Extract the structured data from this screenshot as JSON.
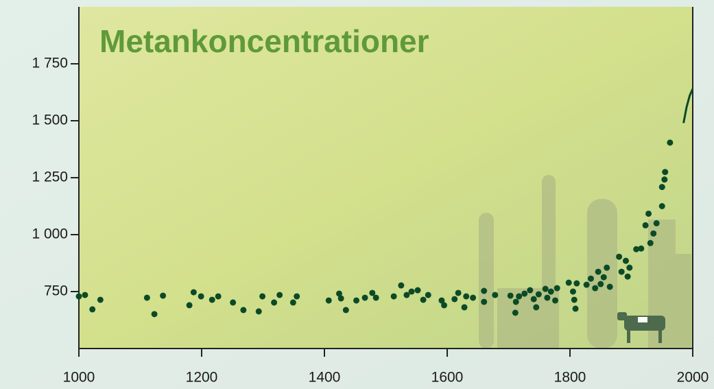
{
  "chart_data": {
    "type": "scatter",
    "title": "Metankoncentrationer",
    "color": "#0b4a26",
    "x": [
      1000,
      1010,
      1022,
      1035,
      1111,
      1123,
      1137,
      1180,
      1187,
      1199,
      1217,
      1227,
      1251,
      1268,
      1293,
      1299,
      1318,
      1327,
      1349,
      1355,
      1407,
      1424,
      1427,
      1435,
      1452,
      1466,
      1478,
      1484,
      1513,
      1525,
      1534,
      1542,
      1552,
      1561,
      1569,
      1591,
      1595,
      1612,
      1618,
      1628,
      1631,
      1642,
      1660,
      1660,
      1678,
      1703,
      1711,
      1712,
      1717,
      1726,
      1735,
      1741,
      1745,
      1749,
      1760,
      1763,
      1769,
      1776,
      1779,
      1798,
      1805,
      1807,
      1809,
      1811,
      1827,
      1834,
      1841,
      1846,
      1850,
      1855,
      1860,
      1865,
      1880,
      1884,
      1891,
      1894,
      1897,
      1908,
      1916,
      1923,
      1928,
      1931,
      1936,
      1941,
      1950,
      1950,
      1954,
      1955,
      1963
    ],
    "values": [
      729,
      735,
      672,
      714,
      723,
      651,
      732,
      690,
      747,
      729,
      714,
      729,
      702,
      669,
      663,
      729,
      702,
      735,
      702,
      729,
      711,
      741,
      720,
      669,
      711,
      723,
      744,
      723,
      729,
      777,
      735,
      750,
      756,
      714,
      735,
      711,
      690,
      717,
      744,
      681,
      729,
      723,
      753,
      705,
      735,
      732,
      657,
      705,
      729,
      741,
      756,
      717,
      681,
      738,
      762,
      723,
      750,
      711,
      765,
      789,
      750,
      714,
      675,
      786,
      780,
      807,
      765,
      837,
      783,
      813,
      855,
      771,
      903,
      837,
      885,
      816,
      855,
      936,
      939,
      1041,
      1092,
      963,
      1005,
      1050,
      1125,
      1209,
      1242,
      1275,
      1404
    ],
    "line": {
      "x": [
        1985,
        1990,
        1995,
        2000
      ],
      "values": [
        1490,
        1560,
        1610,
        1640
      ],
      "color": "#0b4a26"
    },
    "xlim": [
      1000,
      2000
    ],
    "xticks": [
      1000,
      1200,
      1400,
      1600,
      1800,
      2000
    ],
    "ylim": [
      500,
      2000
    ],
    "yticks": [
      750,
      {
        "value": 1000,
        "label": "1 000"
      },
      {
        "value": 1250,
        "label": "1 250"
      },
      {
        "value": 1500,
        "label": "1 500"
      },
      {
        "value": 1750,
        "label": "1 750"
      }
    ]
  }
}
